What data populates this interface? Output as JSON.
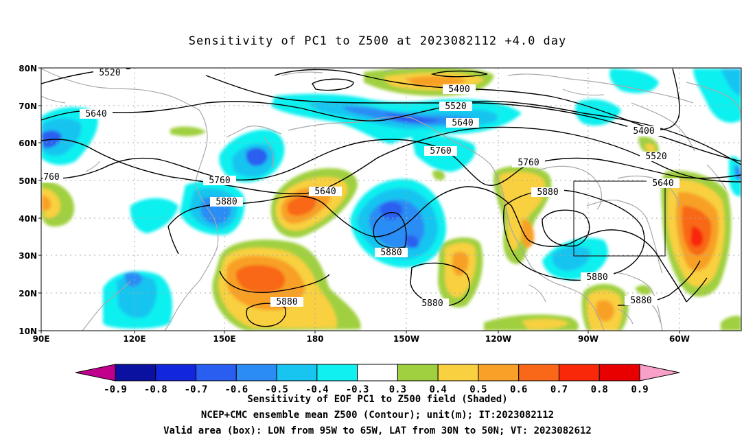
{
  "title": "Sensitivity of PC1 to Z500 at 2023082112 +4.0 day",
  "lat_labels": [
    "80N",
    "70N",
    "60N",
    "50N",
    "40N",
    "30N",
    "20N",
    "10N"
  ],
  "lon_labels": [
    "90E",
    "120E",
    "150E",
    "180",
    "150W",
    "120W",
    "90W",
    "60W"
  ],
  "contours": {
    "c5520a": "5520",
    "c5400": "5400",
    "c5520b": "5520",
    "c5640a": "5640",
    "c5640b": "5640",
    "c5760a": "5760",
    "c5760b": "5760",
    "c5760c": "5760",
    "c5760d": "760",
    "c5880a": "5880",
    "c5880b": "5880",
    "c5880c": "5880",
    "c5880d": "5880",
    "c5880e": "5880",
    "c5880f": "5880",
    "c5880g": "5880",
    "c5640c": "5640",
    "c5640d": "5640",
    "c5400b": "5400",
    "c5520c": "5520"
  },
  "colorbar": {
    "labels": [
      "-0.9",
      "-0.8",
      "-0.7",
      "-0.6",
      "-0.5",
      "-0.4",
      "-0.3",
      "0.3",
      "0.4",
      "0.5",
      "0.6",
      "0.7",
      "0.8",
      "0.9"
    ],
    "colors": [
      "#c0008c",
      "#0a10a0",
      "#1226dc",
      "#2a5ef0",
      "#2c8cf5",
      "#18c4f0",
      "#10f0f0",
      "#ffffff",
      "#a0d040",
      "#f8d040",
      "#f8a028",
      "#f86818",
      "#f82808",
      "#e80000",
      "#f8a0c8"
    ]
  },
  "captions": {
    "line1": "Sensitivity of EOF PC1 to Z500 field (Shaded)",
    "line2": "NCEP+CMC ensemble mean Z500 (Contour); unit(m); IT:2023082112",
    "line3": "Valid area (box): LON from 95W to 65W, LAT from 30N to 50N; VT: 2023082612"
  }
}
